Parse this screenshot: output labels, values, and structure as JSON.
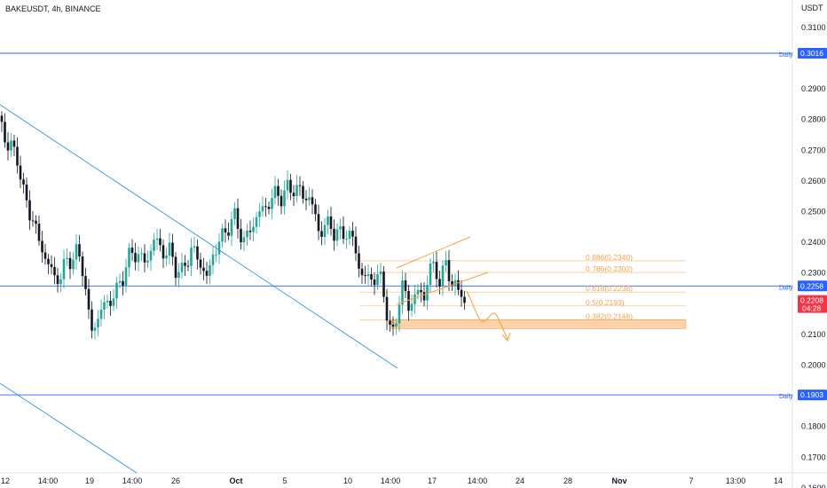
{
  "header": {
    "symbol_line": "BAKEUSDT, 4h, BINANCE"
  },
  "price_axis": {
    "currency": "USDT",
    "ticks": [
      "0.3100",
      "0.2900",
      "0.2800",
      "0.2700",
      "0.2600",
      "0.2500",
      "0.2400",
      "0.2300",
      "0.2100",
      "0.2000",
      "0.1800",
      "0.1700",
      "0.1600"
    ]
  },
  "time_axis": {
    "ticks": [
      "12",
      "14:00",
      "19",
      "14:00",
      "26",
      "Oct",
      "5",
      "10",
      "14:00",
      "17",
      "14:00",
      "24",
      "28",
      "Nov",
      "7",
      "13:00",
      "14"
    ]
  },
  "levels": [
    {
      "name": "daily-resistance",
      "value": 0.3016,
      "label": "Daily",
      "badge": "0.3016",
      "color": "#2962ff"
    },
    {
      "name": "daily-mid",
      "value": 0.2258,
      "label": "Daily",
      "badge": "0.2258",
      "color": "#2962ff"
    },
    {
      "name": "daily-support",
      "value": 0.1903,
      "label": "Daily",
      "badge": "0.1903",
      "color": "#2962ff"
    }
  ],
  "last_price": {
    "value": "0.2208",
    "countdown": "04:28",
    "color": "#f23645"
  },
  "fibonacci": [
    {
      "label": "0.886(0.2340)",
      "value": 0.234
    },
    {
      "label": "0.786(0.2302)",
      "value": 0.2302
    },
    {
      "label": "0.618(0.2238)",
      "value": 0.2238
    },
    {
      "label": "0.5(0.2193)",
      "value": 0.2193
    },
    {
      "label": "0.382(0.2148)",
      "value": 0.2148
    }
  ],
  "colors": {
    "up": "#26a69a",
    "down": "#131722",
    "trend": "#2196f3",
    "fib": "#f7a24a",
    "zone": "#f9c38c"
  },
  "chart_data": {
    "type": "candlestick",
    "symbol": "BAKEUSDT",
    "interval": "4h",
    "exchange": "BINANCE",
    "ylim": [
      0.157,
      0.318
    ],
    "close_path": [
      [
        0,
        0.278
      ],
      [
        6,
        0.272
      ],
      [
        12,
        0.27
      ],
      [
        18,
        0.268
      ],
      [
        24,
        0.256
      ],
      [
        30,
        0.251
      ],
      [
        36,
        0.247
      ],
      [
        42,
        0.24
      ],
      [
        48,
        0.236
      ],
      [
        54,
        0.232
      ],
      [
        60,
        0.228
      ],
      [
        66,
        0.229
      ],
      [
        72,
        0.233
      ],
      [
        78,
        0.235
      ],
      [
        84,
        0.236
      ],
      [
        90,
        0.234
      ],
      [
        96,
        0.222
      ],
      [
        100,
        0.21
      ],
      [
        106,
        0.214
      ],
      [
        112,
        0.218
      ],
      [
        118,
        0.22
      ],
      [
        124,
        0.222
      ],
      [
        130,
        0.224
      ],
      [
        136,
        0.229
      ],
      [
        142,
        0.234
      ],
      [
        148,
        0.237
      ],
      [
        154,
        0.236
      ],
      [
        160,
        0.233
      ],
      [
        166,
        0.236
      ],
      [
        172,
        0.241
      ],
      [
        178,
        0.239
      ],
      [
        184,
        0.236
      ],
      [
        190,
        0.237
      ],
      [
        196,
        0.232
      ],
      [
        202,
        0.229
      ],
      [
        208,
        0.234
      ],
      [
        214,
        0.238
      ],
      [
        220,
        0.235
      ],
      [
        226,
        0.232
      ],
      [
        232,
        0.228
      ],
      [
        238,
        0.236
      ],
      [
        244,
        0.24
      ],
      [
        250,
        0.242
      ],
      [
        256,
        0.246
      ],
      [
        262,
        0.248
      ],
      [
        268,
        0.244
      ],
      [
        274,
        0.24
      ],
      [
        280,
        0.244
      ],
      [
        286,
        0.248
      ],
      [
        292,
        0.25
      ],
      [
        298,
        0.252
      ],
      [
        304,
        0.254
      ],
      [
        310,
        0.256
      ],
      [
        316,
        0.255
      ],
      [
        322,
        0.257
      ],
      [
        328,
        0.258
      ],
      [
        334,
        0.257
      ],
      [
        340,
        0.255
      ],
      [
        346,
        0.255
      ],
      [
        352,
        0.25
      ],
      [
        358,
        0.243
      ],
      [
        364,
        0.245
      ],
      [
        370,
        0.246
      ],
      [
        376,
        0.243
      ],
      [
        382,
        0.242
      ],
      [
        388,
        0.244
      ],
      [
        394,
        0.241
      ],
      [
        400,
        0.237
      ],
      [
        404,
        0.23
      ],
      [
        408,
        0.228
      ],
      [
        414,
        0.229
      ],
      [
        420,
        0.228
      ],
      [
        426,
        0.229
      ],
      [
        432,
        0.222
      ],
      [
        436,
        0.213
      ],
      [
        440,
        0.208
      ],
      [
        444,
        0.215
      ],
      [
        448,
        0.222
      ],
      [
        452,
        0.226
      ],
      [
        458,
        0.219
      ],
      [
        464,
        0.222
      ],
      [
        470,
        0.224
      ],
      [
        476,
        0.222
      ],
      [
        482,
        0.232
      ],
      [
        488,
        0.231
      ],
      [
        494,
        0.228
      ],
      [
        500,
        0.232
      ],
      [
        506,
        0.229
      ],
      [
        510,
        0.226
      ],
      [
        514,
        0.223
      ],
      [
        518,
        0.224
      ],
      [
        522,
        0.2208
      ]
    ],
    "annotations": [
      "trend-lines",
      "rising-wedge",
      "fibonacci-retracement",
      "projected-drop-arrow",
      "support-zone"
    ]
  }
}
